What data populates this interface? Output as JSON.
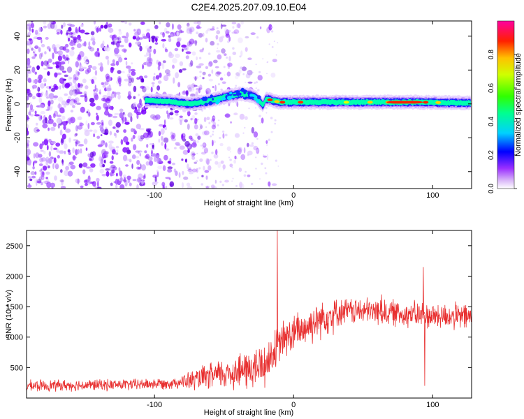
{
  "chart_data": [
    {
      "type": "heatmap",
      "title": "C2E4.2025.207.09.10.E04",
      "xlabel": "Height of straight line (km)",
      "ylabel": "Frequency (Hz)",
      "xlim": [
        -192,
        128
      ],
      "ylim": [
        -50,
        49
      ],
      "xticks": [
        -100,
        0,
        100
      ],
      "yticks": [
        -40,
        -20,
        0,
        20,
        40
      ],
      "colorbar": {
        "label": "Normalized spectral amplitude",
        "range": [
          0,
          1
        ],
        "ticks": [
          0.0,
          0.2,
          0.4,
          0.6,
          0.8
        ]
      },
      "features": {
        "noise_region_x": [
          -192,
          -60
        ],
        "carrier_start_x": -107,
        "carrier_offset_hz": [
          [
            -107,
            2
          ],
          [
            -90,
            1.5
          ],
          [
            -75,
            0
          ],
          [
            -62,
            1.5
          ],
          [
            -50,
            4
          ],
          [
            -38,
            6
          ],
          [
            -30,
            5
          ],
          [
            -26,
            3
          ],
          [
            -22,
            -1
          ],
          [
            -20,
            3
          ],
          [
            -10,
            1
          ],
          [
            0,
            1
          ],
          [
            20,
            1
          ],
          [
            60,
            1
          ],
          [
            90,
            1
          ],
          [
            128,
            0.5
          ]
        ]
      }
    },
    {
      "type": "line",
      "xlabel": "Height of straight line (km)",
      "ylabel": "SNR (10 * v/v)",
      "xlim": [
        -192,
        128
      ],
      "ylim": [
        0,
        2750
      ],
      "xticks": [
        -100,
        0,
        100
      ],
      "yticks": [
        500,
        1000,
        1500,
        2000,
        2500
      ],
      "series": [
        {
          "color": "#e83030",
          "trend": [
            [
              -192,
              200
            ],
            [
              -120,
              220
            ],
            [
              -90,
              240
            ],
            [
              -75,
              280
            ],
            [
              -60,
              350
            ],
            [
              -45,
              420
            ],
            [
              -30,
              470
            ],
            [
              -20,
              550
            ],
            [
              -14,
              780
            ],
            [
              -8,
              950
            ],
            [
              0,
              1050
            ],
            [
              10,
              1180
            ],
            [
              20,
              1320
            ],
            [
              30,
              1400
            ],
            [
              40,
              1430
            ],
            [
              60,
              1420
            ],
            [
              80,
              1380
            ],
            [
              100,
              1350
            ],
            [
              128,
              1330
            ]
          ],
          "spikes": [
            [
              -12,
              2750
            ],
            [
              63,
              1700
            ],
            [
              93,
              2150
            ],
            [
              94,
              200
            ]
          ]
        }
      ]
    }
  ]
}
